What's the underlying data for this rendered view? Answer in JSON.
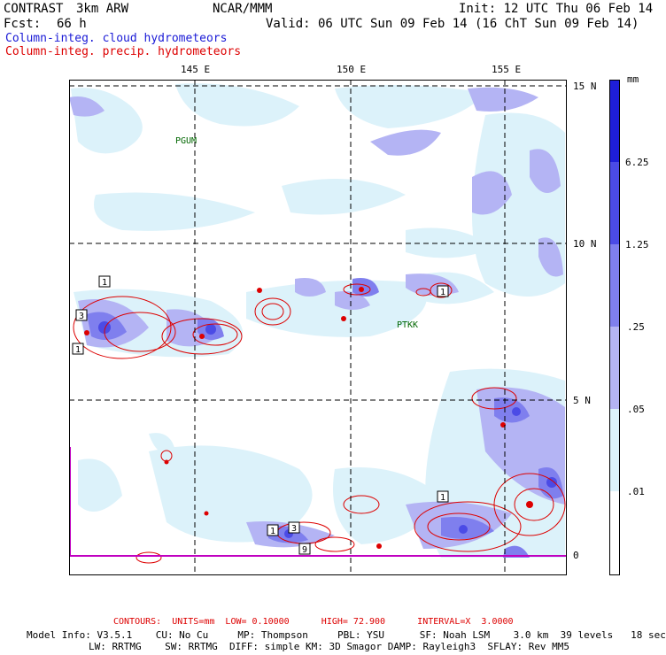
{
  "header": {
    "project": "CONTRAST",
    "model": "3km ARW",
    "org": "NCAR/MMM",
    "init": "Init: 12 UTC Thu 06 Feb 14",
    "fcst_label": "Fcst:",
    "fcst_value": "66 h",
    "valid": "Valid: 06 UTC Sun 09 Feb 14 (16 ChT Sun 09 Feb 14)",
    "legend_cloud": "Column-integ. cloud hydrometeors",
    "legend_precip": "Column-integ. precip. hydrometeors"
  },
  "map": {
    "lon_labels": [
      "145 E",
      "150 E",
      "155 E"
    ],
    "lat_labels": [
      "15 N",
      "10 N",
      "5 N",
      "0"
    ],
    "stations": [
      "PGUM",
      "PTKK"
    ],
    "contour_labels": [
      "1",
      "3",
      "1",
      "1",
      "1",
      "3",
      "9",
      "1"
    ]
  },
  "colorbar": {
    "unit": "mm",
    "levels": [
      "6.25",
      "1.25",
      ".25",
      ".05",
      ".01"
    ],
    "colors": [
      "#1e1ed8",
      "#4b4be6",
      "#7f7fee",
      "#b4b4f4",
      "#dcf2fa",
      "#ffffff"
    ]
  },
  "footer": {
    "contours": "CONTOURS:  UNITS=mm  LOW= 0.10000      HIGH= 72.900      INTERVAL=X  3.0000",
    "model_info_1": "Model Info: V3.5.1    CU: No Cu     MP: Thompson     PBL: YSU      SF: Noah LSM    3.0 km  39 levels   18 sec",
    "model_info_2": "LW: RRTMG    SW: RRTMG  DIFF: simple KM: 3D Smagor DAMP: Rayleigh3  SFLAY: Rev MM5"
  }
}
